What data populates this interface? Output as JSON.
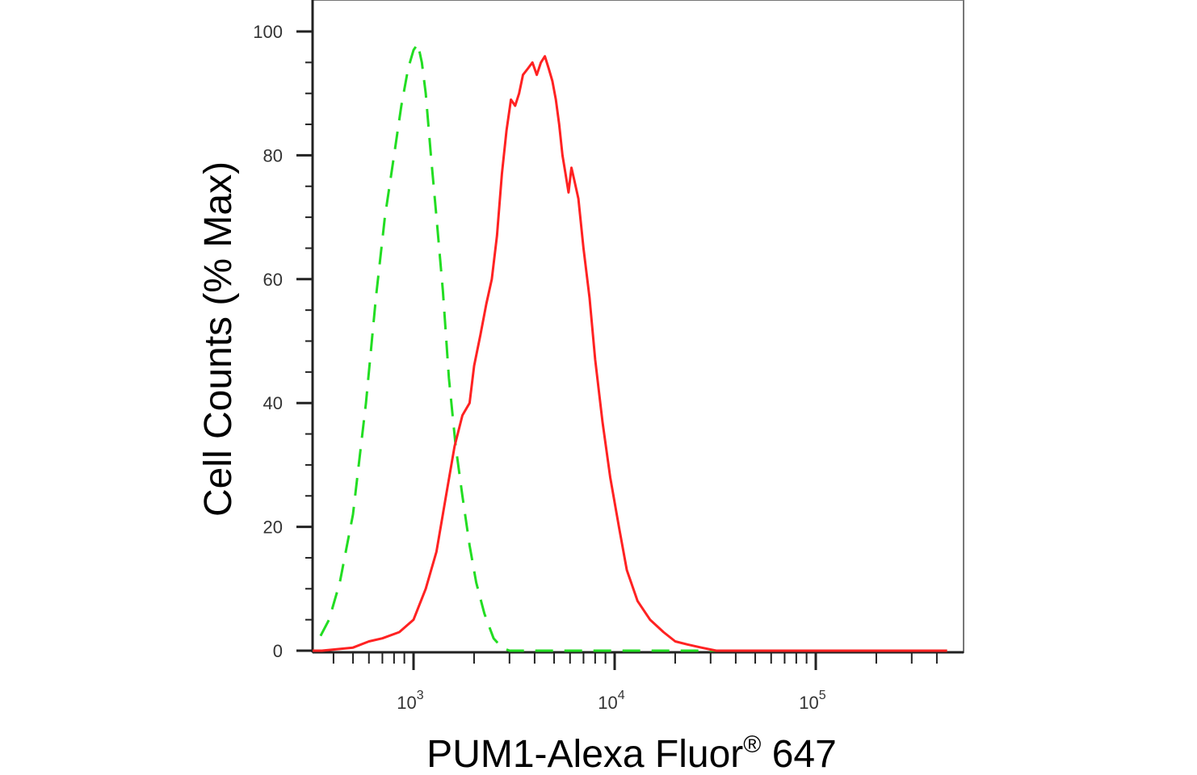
{
  "chart_data": {
    "type": "line",
    "title": "",
    "xlabel": {
      "main": "PUM1-Alexa Fluor",
      "superscript": "®",
      "suffix": " 647"
    },
    "ylabel": "Cell Counts (% Max)",
    "xscale": "log",
    "xlim": [
      200,
      450000
    ],
    "ylim": [
      0,
      105
    ],
    "y_ticks": [
      0,
      20,
      40,
      60,
      80,
      100
    ],
    "y_tick_labels": [
      "0",
      "20",
      "40",
      "60",
      "80",
      "100"
    ],
    "x_ticks": [
      {
        "value": 1000,
        "base": "10",
        "exp": "3"
      },
      {
        "value": 10000,
        "base": "10",
        "exp": "4"
      },
      {
        "value": 100000,
        "base": "10",
        "exp": "5"
      }
    ],
    "grid": false,
    "legend": "none",
    "series": [
      {
        "color": "#22dd22",
        "style": "dashed",
        "x": [
          215,
          225,
          240,
          265,
          300,
          340,
          380,
          430,
          500,
          580,
          650,
          720,
          800,
          870,
          940,
          1000,
          1050,
          1100,
          1150,
          1220,
          1300,
          1400,
          1500,
          1620,
          1750,
          1900,
          2050,
          2250,
          2500,
          2750,
          3000,
          4000,
          8000,
          20000,
          100000,
          450000
        ],
        "y": [
          10,
          6,
          2,
          1,
          1,
          2,
          5,
          11,
          22,
          40,
          57,
          70,
          80,
          88,
          94,
          97,
          98,
          95,
          90,
          80,
          70,
          58,
          44,
          33,
          25,
          17,
          11,
          6,
          2,
          0.5,
          0,
          0,
          0,
          0,
          0,
          0
        ]
      },
      {
        "color": "#ff2222",
        "style": "solid",
        "x": [
          200,
          350,
          500,
          600,
          700,
          850,
          1000,
          1150,
          1300,
          1450,
          1600,
          1750,
          1900,
          2000,
          2150,
          2300,
          2450,
          2600,
          2750,
          2900,
          3050,
          3200,
          3350,
          3500,
          3700,
          3900,
          4100,
          4300,
          4500,
          4700,
          4900,
          5100,
          5300,
          5500,
          5700,
          5900,
          6100,
          6300,
          6600,
          7000,
          7500,
          8000,
          8700,
          9500,
          10500,
          11500,
          13000,
          15000,
          17500,
          20000,
          23000,
          27000,
          32000,
          40000,
          100000,
          450000
        ],
        "y": [
          0,
          0,
          0.5,
          1.5,
          2,
          3,
          5,
          10,
          16,
          25,
          33,
          38,
          40,
          46,
          51,
          56,
          60,
          67,
          77,
          84,
          89,
          88,
          90,
          93,
          94,
          95,
          93,
          95,
          96,
          94,
          92,
          89,
          85,
          80,
          77,
          74,
          78,
          76,
          73,
          65,
          57,
          47,
          37,
          28,
          20,
          13,
          8,
          5,
          3,
          1.5,
          1,
          0.5,
          0,
          0,
          0,
          0
        ]
      }
    ]
  }
}
